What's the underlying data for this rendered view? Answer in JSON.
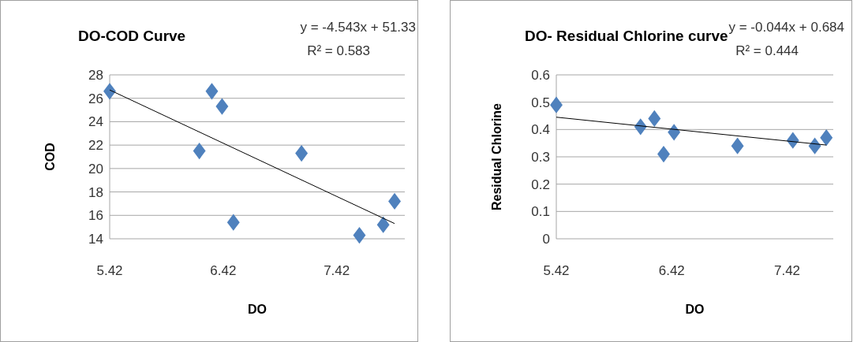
{
  "chart_data": [
    {
      "type": "scatter",
      "title": "DO-COD Curve",
      "xlabel": "DO",
      "ylabel": "COD",
      "xlim": [
        5.42,
        8.02
      ],
      "xticks": [
        5.42,
        6.42,
        7.42
      ],
      "ylim": [
        14,
        28
      ],
      "yticks": [
        14,
        16,
        18,
        20,
        22,
        24,
        26,
        28
      ],
      "grid": "y",
      "annotations": [
        "y = -4.543x + 51.33",
        "R² = 0.583"
      ],
      "series": [
        {
          "marker": "diamond",
          "color": "#4f81bd",
          "x": [
            5.42,
            6.21,
            6.32,
            6.41,
            6.51,
            7.11,
            7.62,
            7.83,
            7.93
          ],
          "values": [
            26.6,
            21.5,
            26.6,
            25.3,
            15.4,
            21.3,
            14.3,
            15.2,
            17.2
          ]
        },
        {
          "type": "line",
          "color": "#000000",
          "x": [
            5.42,
            7.93
          ],
          "values": [
            26.71,
            15.3
          ]
        }
      ]
    },
    {
      "type": "scatter",
      "title": "DO- Residual Chlorine  curve",
      "xlabel": "DO",
      "ylabel": "Residual Chlorine",
      "xlim": [
        5.42,
        7.82
      ],
      "xticks": [
        5.42,
        6.42,
        7.42
      ],
      "ylim": [
        0,
        0.6
      ],
      "yticks": [
        0,
        0.1,
        0.2,
        0.3,
        0.4,
        0.5,
        0.6
      ],
      "grid": "y",
      "annotations": [
        "y = -0.044x + 0.684",
        "R² = 0.444"
      ],
      "series": [
        {
          "marker": "diamond",
          "color": "#4f81bd",
          "x": [
            5.42,
            6.15,
            6.27,
            6.35,
            6.44,
            6.99,
            7.47,
            7.66,
            7.76
          ],
          "values": [
            0.49,
            0.41,
            0.44,
            0.31,
            0.39,
            0.34,
            0.36,
            0.34,
            0.37
          ]
        },
        {
          "type": "line",
          "color": "#000000",
          "x": [
            5.42,
            7.76
          ],
          "values": [
            0.445,
            0.343
          ]
        }
      ]
    }
  ]
}
